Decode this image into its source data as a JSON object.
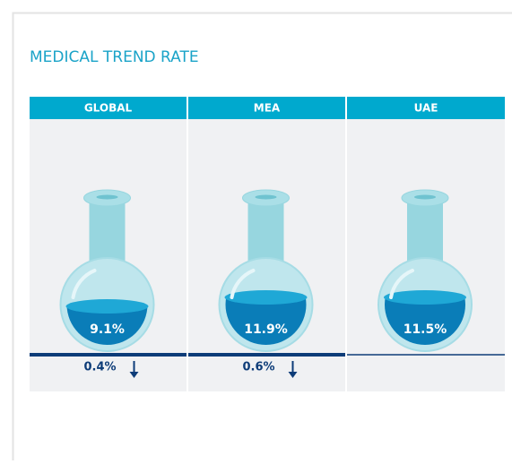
{
  "title": "MEDICAL TREND RATE",
  "panels": [
    {
      "region": "GLOBAL",
      "rate": "9.1%",
      "change": "0.4%"
    },
    {
      "region": "MEA",
      "rate": "11.9%",
      "change": "0.6%"
    },
    {
      "region": "UAE",
      "rate": "11.5%"
    }
  ]
}
